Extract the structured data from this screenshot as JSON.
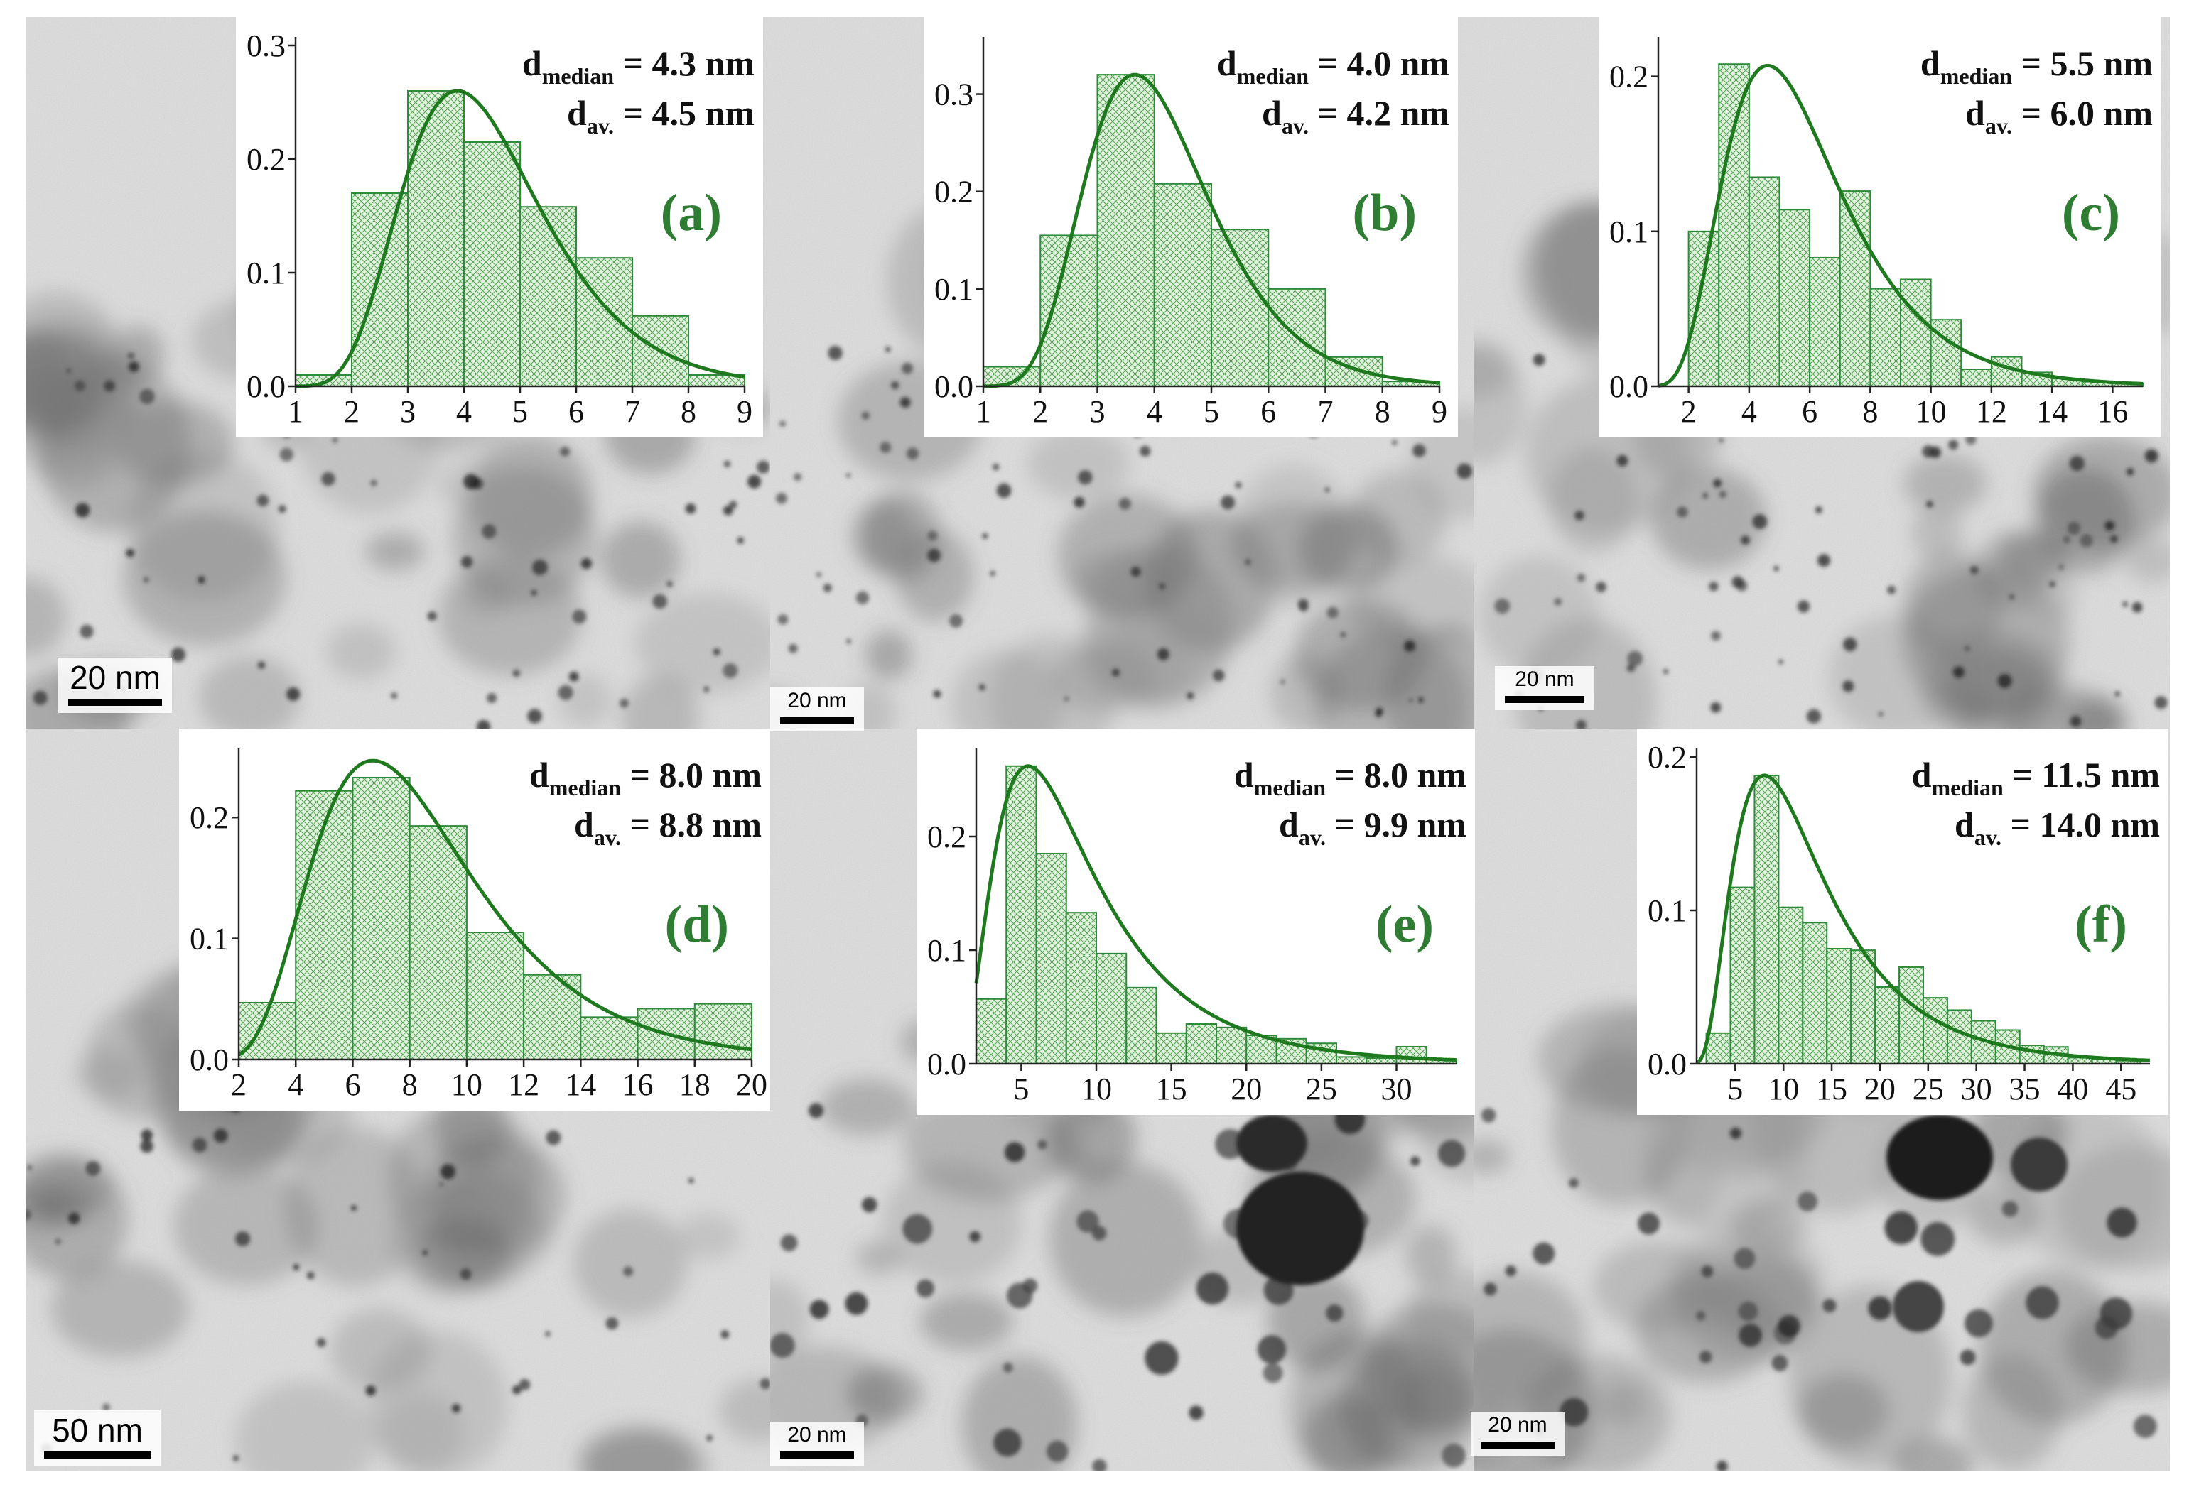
{
  "colors": {
    "bar_stroke": "#2e8b3a",
    "bar_hatch": "#5aa85a",
    "bar_fill": "#e3f3e0",
    "fit_line": "#1f7a1f",
    "label_green": "#2e7d32"
  },
  "chart_data": [
    {
      "type": "bar",
      "panel": "(a)",
      "median_label": "d",
      "median_sub": "median",
      "median_value": " = 4.3 nm",
      "avg_label": "d",
      "avg_sub": "av.",
      "avg_value": " = 4.5 nm",
      "scale_bar": "20 nm",
      "xlim": [
        1,
        9
      ],
      "ylim": [
        0,
        0.3
      ],
      "xticks": [
        1,
        2,
        3,
        4,
        5,
        6,
        7,
        8,
        9
      ],
      "yticks": [
        0.0,
        0.1,
        0.2,
        0.3
      ],
      "ytick_labels": [
        "0.0",
        "0.1",
        "0.2",
        "0.3"
      ],
      "bin_edges": [
        1,
        2,
        3,
        4,
        5,
        6,
        7,
        8,
        9
      ],
      "values": [
        0.01,
        0.17,
        0.26,
        0.215,
        0.158,
        0.113,
        0.062,
        0.01
      ],
      "fit": {
        "type": "lognormal",
        "median": 4.3,
        "sigma": 0.32,
        "peak": 0.26
      }
    },
    {
      "type": "bar",
      "panel": "(b)",
      "median_label": "d",
      "median_sub": "median",
      "median_value": " = 4.0 nm",
      "avg_label": "d",
      "avg_sub": "av.",
      "avg_value": " = 4.2 nm",
      "scale_bar": "20 nm",
      "xlim": [
        1,
        9
      ],
      "ylim": [
        0,
        0.35
      ],
      "xticks": [
        1,
        2,
        3,
        4,
        5,
        6,
        7,
        8,
        9
      ],
      "yticks": [
        0.0,
        0.1,
        0.2,
        0.3
      ],
      "ytick_labels": [
        "0.0",
        "0.1",
        "0.2",
        "0.3"
      ],
      "bin_edges": [
        1,
        2,
        3,
        4,
        5,
        6,
        7,
        8,
        9
      ],
      "values": [
        0.02,
        0.155,
        0.32,
        0.208,
        0.161,
        0.1,
        0.03,
        0.005
      ],
      "fit": {
        "type": "lognormal",
        "median": 4.0,
        "sigma": 0.3,
        "peak": 0.32
      }
    },
    {
      "type": "bar",
      "panel": "(c)",
      "median_label": "d",
      "median_sub": "median",
      "median_value": " = 5.5 nm",
      "avg_label": "d",
      "avg_sub": "av.",
      "avg_value": " = 6.0 nm",
      "scale_bar": "20 nm",
      "xlim": [
        1,
        17
      ],
      "ylim": [
        0,
        0.22
      ],
      "xticks": [
        2,
        4,
        6,
        8,
        10,
        12,
        14,
        16
      ],
      "yticks": [
        0.0,
        0.1,
        0.2
      ],
      "ytick_labels": [
        "0.0",
        "0.1",
        "0.2"
      ],
      "bin_edges": [
        2,
        3,
        4,
        5,
        6,
        7,
        8,
        9,
        10,
        11,
        12,
        13,
        14,
        15,
        16,
        17
      ],
      "values": [
        0.1,
        0.208,
        0.135,
        0.114,
        0.083,
        0.126,
        0.063,
        0.069,
        0.043,
        0.011,
        0.019,
        0.009,
        0.005,
        0.003,
        0.002
      ],
      "fit": {
        "type": "lognormal",
        "median": 5.5,
        "sigma": 0.42,
        "peak": 0.207
      }
    },
    {
      "type": "bar",
      "panel": "(d)",
      "median_label": "d",
      "median_sub": "median",
      "median_value": " = 8.0 nm",
      "avg_label": "d",
      "avg_sub": "av.",
      "avg_value": " = 8.8 nm",
      "scale_bar": "50 nm",
      "xlim": [
        2,
        20
      ],
      "ylim": [
        0,
        0.25
      ],
      "xticks": [
        2,
        4,
        6,
        8,
        10,
        12,
        14,
        16,
        18,
        20
      ],
      "yticks": [
        0.0,
        0.1,
        0.2
      ],
      "ytick_labels": [
        "0.0",
        "0.1",
        "0.2"
      ],
      "bin_edges": [
        2,
        4,
        6,
        8,
        10,
        12,
        14,
        16,
        18,
        20
      ],
      "values": [
        0.047,
        0.222,
        0.233,
        0.193,
        0.105,
        0.07,
        0.035,
        0.042,
        0.046
      ],
      "fit": {
        "type": "lognormal",
        "median": 8.0,
        "sigma": 0.42,
        "peak": 0.247
      }
    },
    {
      "type": "bar",
      "panel": "(e)",
      "median_label": "d",
      "median_sub": "median",
      "median_value": " = 8.0 nm",
      "avg_label": "d",
      "avg_sub": "av.",
      "avg_value": " = 9.9 nm",
      "scale_bar": "20 nm",
      "xlim": [
        2,
        34
      ],
      "ylim": [
        0,
        0.27
      ],
      "xticks": [
        5,
        10,
        15,
        20,
        25,
        30
      ],
      "yticks": [
        0.0,
        0.1,
        0.2
      ],
      "ytick_labels": [
        "0.0",
        "0.1",
        "0.2"
      ],
      "bin_edges": [
        2,
        4,
        6,
        8,
        10,
        12,
        14,
        16,
        18,
        20,
        22,
        24,
        26,
        28,
        30,
        32,
        34
      ],
      "values": [
        0.057,
        0.262,
        0.185,
        0.133,
        0.097,
        0.067,
        0.027,
        0.035,
        0.032,
        0.025,
        0.022,
        0.018,
        0.006,
        0.005,
        0.015,
        0.004
      ],
      "fit": {
        "type": "lognormal",
        "median": 8.0,
        "sigma": 0.62,
        "peak": 0.262
      }
    },
    {
      "type": "bar",
      "panel": "(f)",
      "median_label": "d",
      "median_sub": "median",
      "median_value": " = 11.5 nm",
      "avg_label": "d",
      "avg_sub": "av.",
      "avg_value": " = 14.0 nm",
      "scale_bar": "20 nm",
      "xlim": [
        1,
        48
      ],
      "ylim": [
        0,
        0.2
      ],
      "xticks": [
        5,
        10,
        15,
        20,
        25,
        30,
        35,
        40,
        45
      ],
      "yticks": [
        0.0,
        0.1,
        0.2
      ],
      "ytick_labels": [
        "0.0",
        "0.1",
        "0.2"
      ],
      "bin_edges": [
        2,
        4.5,
        7,
        9.5,
        12,
        14.5,
        17,
        19.5,
        22,
        24.5,
        27,
        29.5,
        32,
        34.5,
        37,
        39.5,
        42,
        44.5,
        47
      ],
      "values": [
        0.02,
        0.115,
        0.188,
        0.102,
        0.092,
        0.075,
        0.074,
        0.05,
        0.063,
        0.043,
        0.035,
        0.028,
        0.022,
        0.012,
        0.011,
        0.004,
        0.003,
        0.002
      ],
      "fit": {
        "type": "lognormal",
        "median": 11.5,
        "sigma": 0.6,
        "peak": 0.188
      }
    }
  ]
}
